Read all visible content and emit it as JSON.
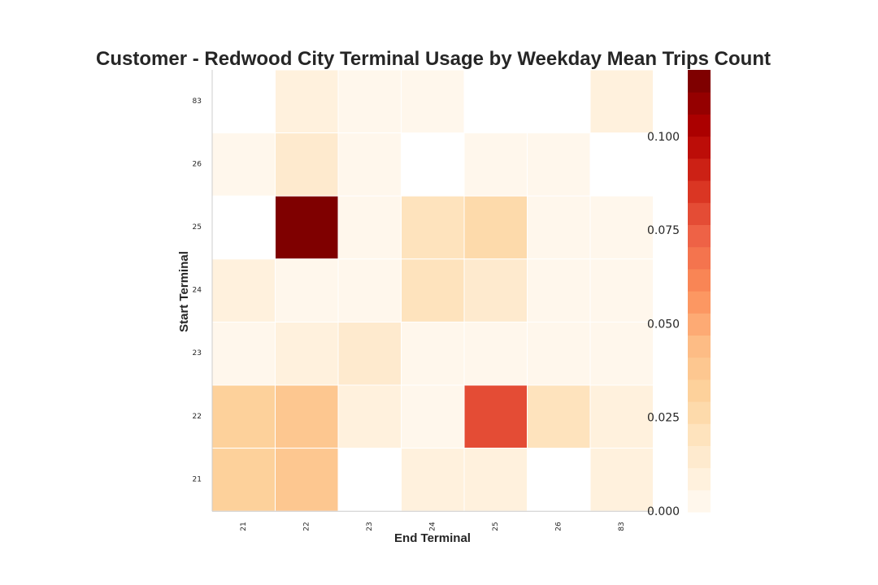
{
  "chart_data": {
    "type": "heatmap",
    "title": "Customer - Redwood City Terminal Usage by Weekday Mean Trips Count",
    "xlabel": "End Terminal",
    "ylabel": "Start Terminal",
    "x_categories": [
      "21",
      "22",
      "23",
      "24",
      "25",
      "26",
      "83"
    ],
    "y_categories": [
      "83",
      "26",
      "25",
      "24",
      "23",
      "22",
      "21"
    ],
    "values": [
      [
        null,
        0.008,
        0.005,
        0.004,
        null,
        null,
        0.01
      ],
      [
        0.004,
        0.012,
        0.004,
        null,
        0.004,
        0.004,
        null
      ],
      [
        null,
        0.118,
        0.004,
        0.022,
        0.026,
        0.004,
        0.004
      ],
      [
        0.007,
        0.004,
        0.004,
        0.02,
        0.012,
        0.004,
        0.004
      ],
      [
        0.004,
        0.007,
        0.016,
        0.004,
        0.004,
        0.004,
        0.004
      ],
      [
        0.032,
        0.036,
        0.008,
        0.004,
        0.082,
        0.018,
        0.007
      ],
      [
        0.032,
        0.036,
        null,
        0.007,
        0.01,
        null,
        0.008
      ]
    ],
    "colorbar": {
      "min": 0.0,
      "max": 0.118,
      "ticks": [
        0.0,
        0.025,
        0.05,
        0.075,
        0.1
      ],
      "tick_labels": [
        "0.000",
        "0.025",
        "0.050",
        "0.075",
        "0.100"
      ],
      "bands": 20,
      "colormap": "OrRd"
    },
    "grid": false,
    "cell_border_color": "#ffffff"
  }
}
